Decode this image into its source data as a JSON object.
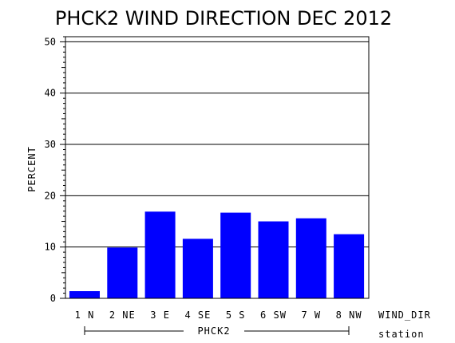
{
  "chart_data": {
    "type": "bar",
    "title": "PHCK2 WIND DIRECTION DEC 2012",
    "ylabel": "PERCENT",
    "xlabel": "WIND_DIR",
    "group_label": "PHCK2",
    "group_axis_label": "station",
    "categories": [
      "1 N",
      "2 NE",
      "3 E",
      "4 SE",
      "5 S",
      "6 SW",
      "7 W",
      "8 NW"
    ],
    "values": [
      1.4,
      9.9,
      16.9,
      11.6,
      16.7,
      15.0,
      15.6,
      12.5
    ],
    "ylim": [
      0,
      51
    ],
    "yticks": [
      0,
      10,
      20,
      30,
      40,
      50
    ],
    "grid": true,
    "bar_color": "#0000ff"
  }
}
